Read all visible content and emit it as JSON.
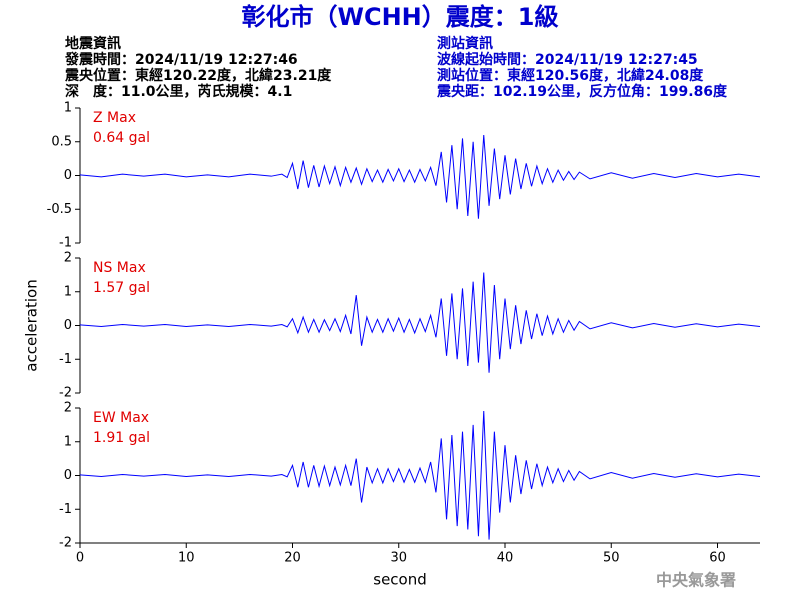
{
  "header": {
    "title": "彰化市（WCHH）震度：1級",
    "left": [
      "地震資訊",
      "發震時間：2024/11/19 12:27:46",
      "震央位置：東經120.22度，北緯23.21度",
      "深　度：11.0公里，芮氏規模：4.1"
    ],
    "right": [
      "測站資訊",
      "波線起始時間：2024/11/19 12:27:45",
      "測站位置：東經120.56度，北緯24.08度",
      "震央距：102.19公里，反方位角：199.86度"
    ]
  },
  "footer": "中央氣象署",
  "chart_data": [
    {
      "type": "line",
      "annotations": [
        "Z Max",
        "0.64 gal"
      ],
      "color": "#0000ff",
      "xlim": [
        0,
        64
      ],
      "ylim": [
        -1,
        1
      ],
      "yticks": [
        -1,
        -0.5,
        0,
        0.5,
        1
      ],
      "x": [
        0,
        2,
        4,
        6,
        8,
        10,
        12,
        14,
        16,
        18,
        19,
        19.5,
        20,
        20.5,
        21,
        21.5,
        22,
        22.5,
        23,
        23.5,
        24,
        24.5,
        25,
        25.5,
        26,
        26.5,
        27,
        27.5,
        28,
        28.5,
        29,
        29.5,
        30,
        30.5,
        31,
        31.5,
        32,
        32.5,
        33,
        33.5,
        34,
        34.5,
        35,
        35.5,
        36,
        36.5,
        37,
        37.5,
        38,
        38.5,
        39,
        39.5,
        40,
        40.5,
        41,
        41.5,
        42,
        42.5,
        43,
        43.5,
        44,
        44.5,
        45,
        45.5,
        46,
        46.5,
        47,
        48,
        50,
        52,
        54,
        56,
        58,
        60,
        62,
        64
      ],
      "values": [
        0.01,
        -0.02,
        0.02,
        -0.01,
        0.02,
        -0.02,
        0.01,
        -0.02,
        0.02,
        -0.01,
        0.02,
        -0.03,
        0.18,
        -0.2,
        0.22,
        -0.18,
        0.15,
        -0.17,
        0.14,
        -0.12,
        0.13,
        -0.15,
        0.12,
        -0.1,
        0.11,
        -0.13,
        0.1,
        -0.09,
        0.08,
        -0.1,
        0.09,
        -0.08,
        0.1,
        -0.09,
        0.08,
        -0.1,
        0.09,
        -0.08,
        0.12,
        -0.15,
        0.35,
        -0.4,
        0.45,
        -0.5,
        0.55,
        -0.6,
        0.5,
        -0.64,
        0.6,
        -0.45,
        0.4,
        -0.35,
        0.3,
        -0.28,
        0.25,
        -0.2,
        0.18,
        -0.16,
        0.14,
        -0.12,
        0.1,
        -0.1,
        0.08,
        -0.07,
        0.06,
        -0.06,
        0.05,
        -0.05,
        0.04,
        -0.04,
        0.03,
        -0.03,
        0.03,
        -0.02,
        0.02,
        -0.02
      ]
    },
    {
      "type": "line",
      "annotations": [
        "NS Max",
        "1.57 gal"
      ],
      "ylabel": "acceleration",
      "color": "#0000ff",
      "xlim": [
        0,
        64
      ],
      "ylim": [
        -2,
        2
      ],
      "yticks": [
        -2,
        -1,
        0,
        1,
        2
      ],
      "x": [
        0,
        2,
        4,
        6,
        8,
        10,
        12,
        14,
        16,
        18,
        19,
        19.5,
        20,
        20.5,
        21,
        21.5,
        22,
        22.5,
        23,
        23.5,
        24,
        24.5,
        25,
        25.5,
        26,
        26.5,
        27,
        27.5,
        28,
        28.5,
        29,
        29.5,
        30,
        30.5,
        31,
        31.5,
        32,
        32.5,
        33,
        33.5,
        34,
        34.5,
        35,
        35.5,
        36,
        36.5,
        37,
        37.5,
        38,
        38.5,
        39,
        39.5,
        40,
        40.5,
        41,
        41.5,
        42,
        42.5,
        43,
        43.5,
        44,
        44.5,
        45,
        45.5,
        46,
        46.5,
        47,
        48,
        50,
        52,
        54,
        56,
        58,
        60,
        62,
        64
      ],
      "values": [
        0.02,
        -0.03,
        0.03,
        -0.02,
        0.03,
        -0.03,
        0.02,
        -0.03,
        0.03,
        -0.02,
        0.03,
        -0.04,
        0.2,
        -0.22,
        0.25,
        -0.2,
        0.18,
        -0.2,
        0.17,
        -0.15,
        0.2,
        -0.18,
        0.3,
        -0.25,
        0.9,
        -0.6,
        0.25,
        -0.2,
        0.18,
        -0.2,
        0.2,
        -0.17,
        0.22,
        -0.2,
        0.18,
        -0.22,
        0.2,
        -0.18,
        0.3,
        -0.35,
        0.8,
        -0.9,
        0.95,
        -1.0,
        1.1,
        -1.2,
        1.3,
        -1.1,
        1.57,
        -1.4,
        1.2,
        -1.0,
        0.8,
        -0.7,
        0.6,
        -0.55,
        0.45,
        -0.4,
        0.35,
        -0.3,
        0.28,
        -0.25,
        0.2,
        -0.2,
        0.15,
        -0.14,
        0.12,
        -0.1,
        0.08,
        -0.07,
        0.06,
        -0.05,
        0.05,
        -0.04,
        0.04,
        -0.03
      ]
    },
    {
      "type": "line",
      "annotations": [
        "EW Max",
        "1.91 gal"
      ],
      "xlabel": "second",
      "color": "#0000ff",
      "xlim": [
        0,
        64
      ],
      "ylim": [
        -2,
        2
      ],
      "yticks": [
        -2,
        -1,
        0,
        1,
        2
      ],
      "xticks": [
        0,
        10,
        20,
        30,
        40,
        50,
        60
      ],
      "x": [
        0,
        2,
        4,
        6,
        8,
        10,
        12,
        14,
        16,
        18,
        19,
        19.5,
        20,
        20.5,
        21,
        21.5,
        22,
        22.5,
        23,
        23.5,
        24,
        24.5,
        25,
        25.5,
        26,
        26.5,
        27,
        27.5,
        28,
        28.5,
        29,
        29.5,
        30,
        30.5,
        31,
        31.5,
        32,
        32.5,
        33,
        33.5,
        34,
        34.5,
        35,
        35.5,
        36,
        36.5,
        37,
        37.5,
        38,
        38.5,
        39,
        39.5,
        40,
        40.5,
        41,
        41.5,
        42,
        42.5,
        43,
        43.5,
        44,
        44.5,
        45,
        45.5,
        46,
        46.5,
        47,
        48,
        50,
        52,
        54,
        56,
        58,
        60,
        62,
        64
      ],
      "values": [
        0.02,
        -0.03,
        0.03,
        -0.02,
        0.03,
        -0.03,
        0.02,
        -0.03,
        0.03,
        -0.02,
        0.03,
        -0.04,
        0.3,
        -0.35,
        0.4,
        -0.35,
        0.3,
        -0.32,
        0.28,
        -0.3,
        0.25,
        -0.28,
        0.3,
        -0.3,
        0.5,
        -0.8,
        0.25,
        -0.22,
        0.2,
        -0.22,
        0.2,
        -0.18,
        0.2,
        -0.2,
        0.18,
        -0.2,
        0.22,
        -0.2,
        0.4,
        -0.5,
        1.1,
        -1.3,
        1.2,
        -1.5,
        1.3,
        -1.6,
        1.5,
        -1.8,
        1.91,
        -1.9,
        1.3,
        -1.1,
        0.9,
        -0.8,
        0.6,
        -0.55,
        0.45,
        -0.4,
        0.35,
        -0.3,
        0.25,
        -0.22,
        0.2,
        -0.18,
        0.15,
        -0.14,
        0.12,
        -0.1,
        0.09,
        -0.08,
        0.06,
        -0.05,
        0.05,
        -0.04,
        0.04,
        -0.03
      ]
    }
  ]
}
